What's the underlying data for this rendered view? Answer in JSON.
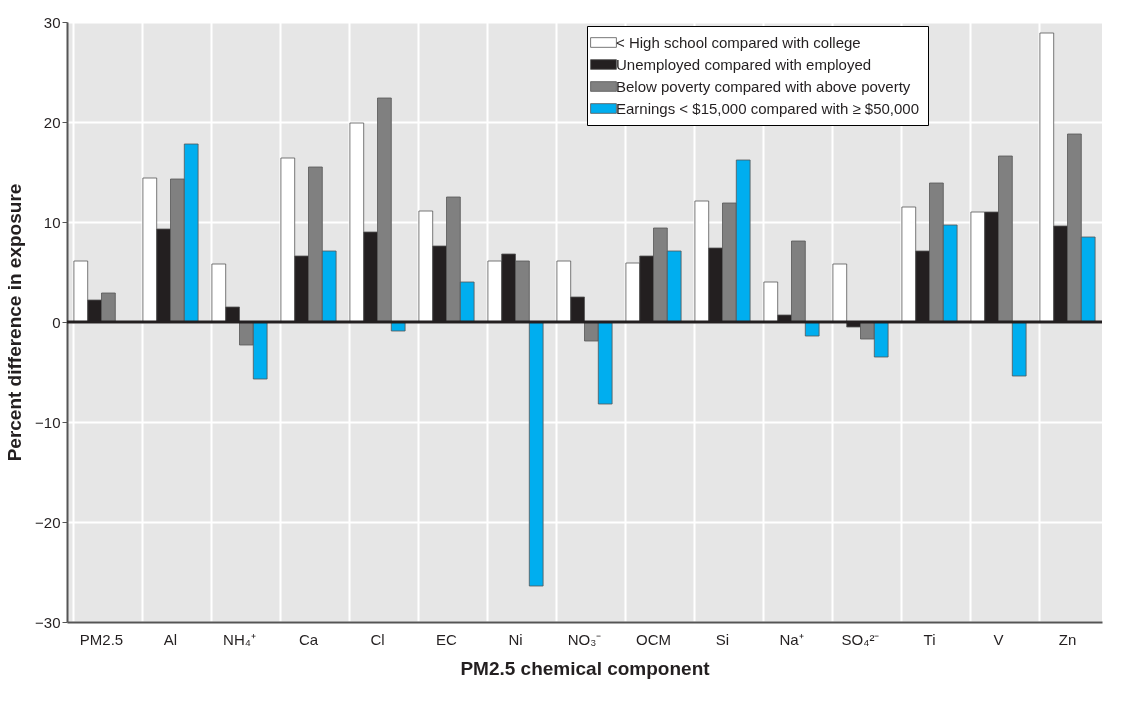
{
  "chart_data": {
    "type": "bar",
    "xlabel": "PM2.5 chemical component",
    "ylabel": "Percent difference in exposure",
    "categories": [
      "PM2.5",
      "Al",
      "NH₄⁺",
      "Ca",
      "Cl",
      "EC",
      "Ni",
      "NO₃⁻",
      "OCM",
      "Si",
      "Na⁺",
      "SO₄²⁻",
      "Ti",
      "V",
      "Zn"
    ],
    "series": [
      {
        "name": "< High school compared with college",
        "color": "#ffffff",
        "values": [
          6.1,
          14.4,
          5.8,
          16.4,
          19.9,
          11.1,
          6.1,
          6.1,
          5.9,
          12.1,
          4.0,
          5.8,
          11.5,
          11.0,
          28.9
        ]
      },
      {
        "name": "Unemployed compared with employed",
        "color": "#231f20",
        "values": [
          2.2,
          9.3,
          1.5,
          6.6,
          9.0,
          7.6,
          6.8,
          2.5,
          6.6,
          7.4,
          0.7,
          -0.5,
          7.1,
          11.0,
          9.6
        ]
      },
      {
        "name": "Below poverty compared with above poverty",
        "color": "#808080",
        "values": [
          2.9,
          14.3,
          -2.3,
          15.5,
          22.4,
          12.5,
          6.1,
          -1.9,
          9.4,
          11.9,
          8.1,
          -1.7,
          13.9,
          16.6,
          18.8
        ]
      },
      {
        "name": "Earnings < $15,000 compared with ≥ $50,000",
        "color": "#00aeef",
        "values": [
          null,
          17.8,
          -5.7,
          7.1,
          -0.9,
          4.0,
          -26.4,
          -8.2,
          7.1,
          16.2,
          -1.4,
          -3.5,
          9.7,
          -5.4,
          8.5
        ]
      }
    ],
    "ylim": [
      -30,
      30
    ],
    "yticks": [
      {
        "value": -30,
        "label": "−30"
      },
      {
        "value": -20,
        "label": "−20"
      },
      {
        "value": -10,
        "label": "−10"
      },
      0,
      10,
      20,
      30
    ],
    "ref_lines": [
      {
        "axis": "y",
        "value": 0,
        "color": "#231f20"
      }
    ],
    "grid": true,
    "legend": "top right"
  }
}
